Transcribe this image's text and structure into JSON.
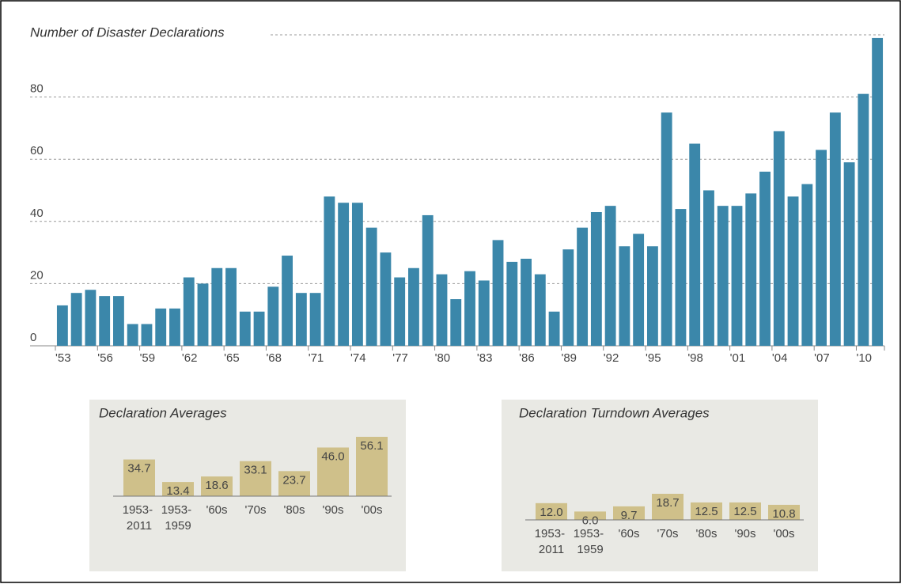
{
  "chart_data": [
    {
      "type": "bar",
      "title": "Number of Disaster Declarations",
      "categories": [
        "'53",
        null,
        null,
        "'56",
        null,
        null,
        "'59",
        null,
        null,
        "'62",
        null,
        null,
        "'65",
        null,
        null,
        "'68",
        null,
        null,
        "'71",
        null,
        null,
        "'74",
        null,
        null,
        "'77",
        null,
        null,
        "'80",
        null,
        null,
        "'83",
        null,
        null,
        "'86",
        null,
        null,
        "'89",
        null,
        null,
        "'92",
        null,
        null,
        "'95",
        null,
        null,
        "'98",
        null,
        null,
        "'01",
        null,
        null,
        "'04",
        null,
        null,
        "'07",
        null,
        null,
        "'10",
        null
      ],
      "values": [
        13,
        17,
        18,
        16,
        16,
        7,
        7,
        12,
        12,
        22,
        20,
        25,
        25,
        11,
        11,
        19,
        29,
        17,
        17,
        48,
        46,
        46,
        38,
        30,
        22,
        25,
        42,
        23,
        15,
        24,
        21,
        34,
        27,
        28,
        23,
        11,
        31,
        38,
        43,
        45,
        32,
        36,
        32,
        75,
        44,
        65,
        50,
        45,
        45,
        49,
        56,
        69,
        48,
        52,
        63,
        75,
        59,
        81,
        99
      ],
      "color": "#3b87aa",
      "ylim": [
        0,
        100
      ],
      "yticks": [
        0,
        20,
        40,
        60,
        80
      ],
      "grid": true
    },
    {
      "type": "bar",
      "title": "Declaration Averages",
      "categories": [
        "1953- 2011",
        "1953- 1959",
        "'60s",
        "'70s",
        "'80s",
        "'90s",
        "'00s"
      ],
      "values": [
        34.7,
        13.4,
        18.6,
        33.1,
        23.7,
        46,
        56.1
      ],
      "value_labels": [
        "34.7",
        "13.4",
        "18.6",
        "33.1",
        "23.7",
        "46.0",
        "56.1"
      ],
      "color": "#cfc08a"
    },
    {
      "type": "bar",
      "title": "Declaration Turndown Averages",
      "categories": [
        "1953- 2011",
        "1953- 1959",
        "'60s",
        "'70s",
        "'80s",
        "'90s",
        "'00s"
      ],
      "values": [
        12,
        6,
        9.7,
        18.7,
        12.5,
        12.5,
        10.8
      ],
      "value_labels": [
        "12.0",
        "6.0",
        "9.7",
        "18.7",
        "12.5",
        "12.5",
        "10.8"
      ],
      "color": "#cfc08a"
    }
  ]
}
